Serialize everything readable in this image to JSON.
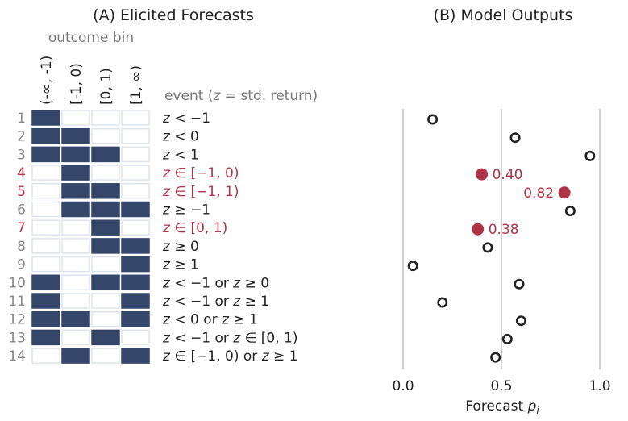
{
  "panel_a": {
    "title": "(A) Elicited Forecasts",
    "bin_header": "outcome bin",
    "bins": [
      "(-∞, -1)",
      "[-1, 0)",
      "[0, 1)",
      "[1, ∞)"
    ],
    "event_header": "event (z = std. return)"
  },
  "rows": [
    {
      "id": "1",
      "event": "z < −1",
      "cells": [
        1,
        0,
        0,
        0
      ],
      "highlight": false
    },
    {
      "id": "2",
      "event": "z < 0",
      "cells": [
        1,
        1,
        0,
        0
      ],
      "highlight": false
    },
    {
      "id": "3",
      "event": "z < 1",
      "cells": [
        1,
        1,
        1,
        0
      ],
      "highlight": false
    },
    {
      "id": "4",
      "event": "z ∈ [−1, 0)",
      "cells": [
        0,
        1,
        0,
        0
      ],
      "highlight": true
    },
    {
      "id": "5",
      "event": "z ∈ [−1, 1)",
      "cells": [
        0,
        1,
        1,
        0
      ],
      "highlight": true
    },
    {
      "id": "6",
      "event": "z ≥ −1",
      "cells": [
        0,
        1,
        1,
        1
      ],
      "highlight": false
    },
    {
      "id": "7",
      "event": "z ∈ [0, 1)",
      "cells": [
        0,
        0,
        1,
        0
      ],
      "highlight": true
    },
    {
      "id": "8",
      "event": "z ≥ 0",
      "cells": [
        0,
        0,
        1,
        1
      ],
      "highlight": false
    },
    {
      "id": "9",
      "event": "z ≥ 1",
      "cells": [
        0,
        0,
        0,
        1
      ],
      "highlight": false
    },
    {
      "id": "10",
      "event": "z < −1 or z ≥ 0",
      "cells": [
        1,
        0,
        1,
        1
      ],
      "highlight": false
    },
    {
      "id": "11",
      "event": "z < −1 or z ≥ 1",
      "cells": [
        1,
        0,
        0,
        1
      ],
      "highlight": false
    },
    {
      "id": "12",
      "event": "z < 0 or z ≥ 1",
      "cells": [
        1,
        1,
        0,
        1
      ],
      "highlight": false
    },
    {
      "id": "13",
      "event": "z < −1 or z ∈ [0, 1)",
      "cells": [
        1,
        0,
        1,
        0
      ],
      "highlight": false
    },
    {
      "id": "14",
      "event": "z ∈ [−1, 0) or z ≥ 1",
      "cells": [
        0,
        1,
        0,
        1
      ],
      "highlight": false
    }
  ],
  "chart_data": {
    "type": "scatter",
    "title": "(B) Model Outputs",
    "xlabel": "Forecast p_i",
    "xlim": [
      0.0,
      1.0
    ],
    "xticks": [
      "0.0",
      "0.5",
      "1.0"
    ],
    "grid": "vertical lines at ticks",
    "categories": [
      "1",
      "2",
      "3",
      "4",
      "5",
      "6",
      "7",
      "8",
      "9",
      "10",
      "11",
      "12",
      "13",
      "14"
    ],
    "values": [
      0.15,
      0.57,
      0.95,
      0.4,
      0.82,
      0.85,
      0.38,
      0.43,
      0.05,
      0.59,
      0.2,
      0.6,
      0.53,
      0.47
    ],
    "highlighted": [
      false,
      false,
      false,
      true,
      true,
      false,
      true,
      false,
      false,
      false,
      false,
      false,
      false,
      false
    ],
    "data_labels": {
      "3": "0.40",
      "4": "0.82",
      "6": "0.38"
    }
  },
  "colors": {
    "filled_cell": "#34466a",
    "empty_cell_border": "#dfe3ec",
    "highlight": "#b03447",
    "open_marker": "#222222",
    "gridline": "#c4c4c4"
  }
}
